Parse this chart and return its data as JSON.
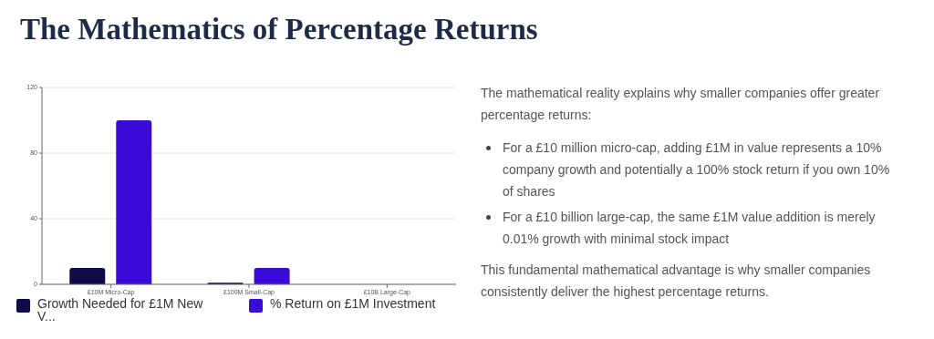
{
  "chart_data": {
    "type": "bar",
    "title": "The Mathematics of Percentage Returns",
    "categories": [
      "£10M Micro-Cap",
      "£100M Small-Cap",
      "£10B Large-Cap"
    ],
    "series": [
      {
        "name": "Growth Needed for £1M New V...",
        "color": "#0e0b47",
        "values": [
          10,
          1,
          0
        ]
      },
      {
        "name": "% Return on £1M Investment",
        "color": "#3a0bd6",
        "values": [
          100,
          10,
          0
        ]
      }
    ],
    "ylim": [
      0,
      120
    ],
    "yticks": [
      0,
      40,
      80,
      120
    ],
    "grid": "y",
    "legend": "bottom left",
    "annotations": [
      "The mathematical reality explains why smaller companies offer greater percentage returns:",
      "For a £10 million micro-cap, adding £1M in value represents a 10% company growth and potentially a 100% stock return if you own 10% of shares",
      "For a £10 billion large-cap, the same £1M value addition is merely 0.01% growth with minimal stock impact",
      "This fundamental mathematical advantage is why smaller companies consistently deliver the highest percentage returns."
    ]
  }
}
